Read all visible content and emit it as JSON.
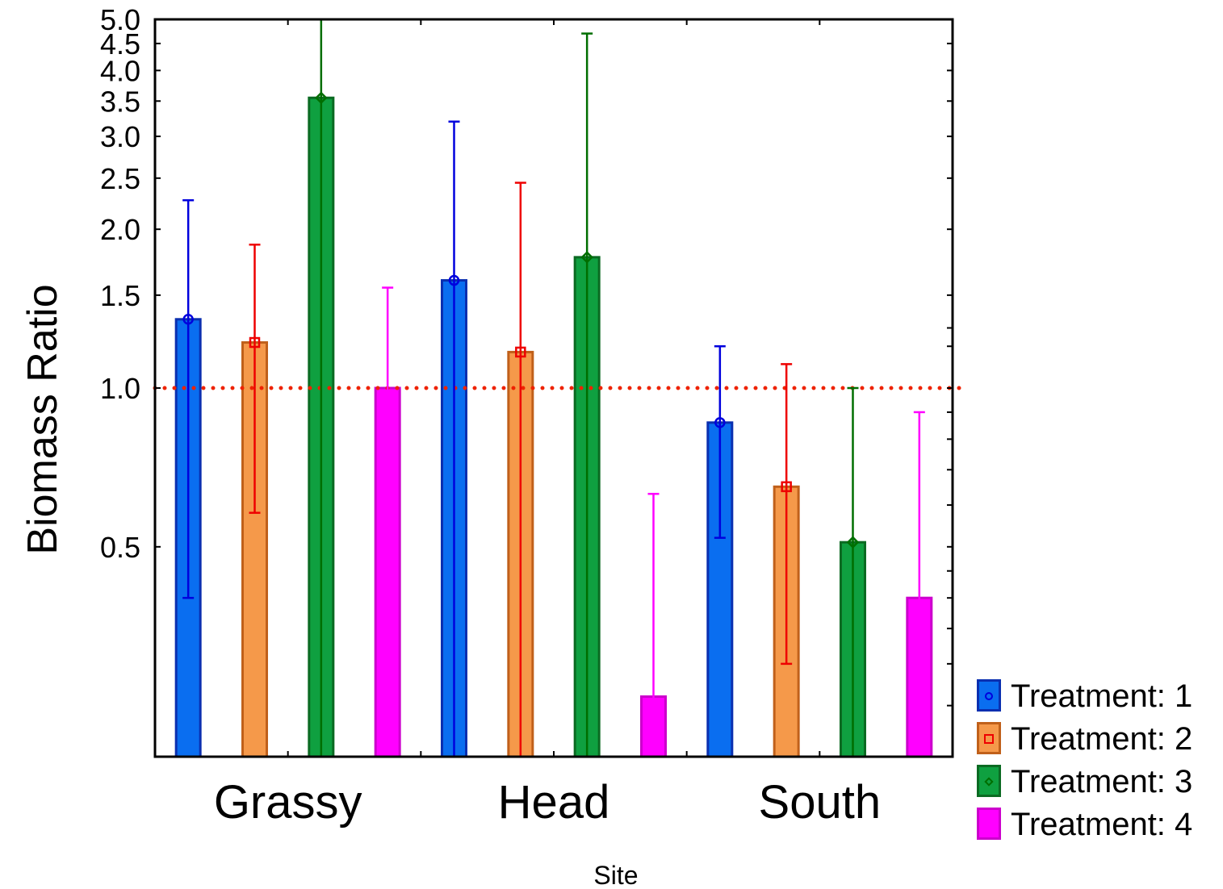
{
  "chart_data": {
    "type": "bar",
    "xlabel": "Site",
    "ylabel": "Biomass Ratio",
    "y_scale": "log",
    "ylim": [
      0.2,
      5.0
    ],
    "y_ticks": [
      0.5,
      1.0,
      1.5,
      2.0,
      2.5,
      3.0,
      3.5,
      4.0,
      4.5,
      5.0
    ],
    "y_tick_labels": [
      "0.5",
      "1.0",
      "1.5",
      "2.0",
      "2.5",
      "3.0",
      "3.5",
      "4.0",
      "4.5",
      "5.0"
    ],
    "reference_line": {
      "value": 1.0,
      "style": "dotted",
      "color": "#ee2200"
    },
    "categories": [
      "Grassy",
      "Head",
      "South"
    ],
    "series": [
      {
        "name": "Treatment: 1",
        "values": [
          1.35,
          1.6,
          0.86
        ],
        "error_upper": [
          2.27,
          3.2,
          1.2
        ],
        "error_lower": [
          0.4,
          0.2,
          0.52
        ],
        "fill": "#0a6ef0",
        "stroke": "#0a2fb0",
        "error_color": "#0000dd",
        "marker": "circle"
      },
      {
        "name": "Treatment: 2",
        "values": [
          1.22,
          1.17,
          0.65
        ],
        "error_upper": [
          1.87,
          2.45,
          1.11
        ],
        "error_lower": [
          0.58,
          0.2,
          0.3
        ],
        "fill": "#f5994a",
        "stroke": "#c0601a",
        "error_color": "#ee0000",
        "marker": "square"
      },
      {
        "name": "Treatment: 3",
        "values": [
          3.55,
          1.77,
          0.51
        ],
        "error_upper": [
          5.0,
          4.7,
          1.0
        ],
        "error_lower": [
          0.2,
          0.2,
          0.2
        ],
        "fill": "#0fa040",
        "stroke": "#0b6a22",
        "error_color": "#006e00",
        "marker": "diamond"
      },
      {
        "name": "Treatment: 4",
        "values": [
          1.0,
          0.26,
          0.4
        ],
        "error_upper": [
          1.55,
          0.63,
          0.9
        ],
        "error_lower": [
          0.2,
          0.2,
          0.2
        ],
        "fill": "#ff00ff",
        "stroke": "#cc00cc",
        "error_color": "#ff00ff",
        "marker": "none"
      }
    ],
    "legend_position": "bottom-right",
    "grid": false
  }
}
